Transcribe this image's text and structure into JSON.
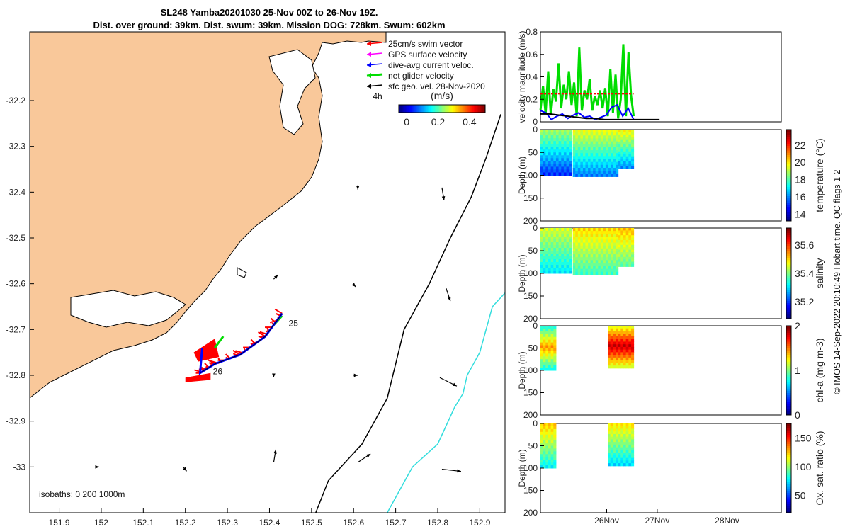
{
  "title": {
    "line1": "SL248 Yamba20201030 25-Nov 00Z to 26-Nov 19Z.",
    "line2": "Dist. over ground: 39km. Dist. swum: 39km. Mission DOG: 728km. Swum: 602km"
  },
  "footer_text": "© IMOS 14-Sep-2022 20:10:49 Hobart time. QC flags 1 2",
  "colors": {
    "land": "#f9c89a",
    "swim": "#ff0000",
    "gps": "#ff00ff",
    "dive_avg": "#0000ff",
    "net": "#00dd00",
    "isobath_200": "#000000",
    "isobath_1000": "#33dddd"
  },
  "chart_data": [
    {
      "type": "map",
      "name": "track-map",
      "x_ticks": [
        "151.9",
        "152",
        "152.1",
        "152.2",
        "152.3",
        "152.4",
        "152.5",
        "152.6",
        "152.7",
        "152.8",
        "152.9"
      ],
      "y_ticks": [
        "-32.2",
        "-32.3",
        "-32.4",
        "-32.5",
        "-32.6",
        "-32.7",
        "-32.8",
        "-32.9",
        "-33"
      ],
      "xlim": [
        151.83,
        152.96
      ],
      "ylim": [
        -33.1,
        -32.05
      ],
      "legend": [
        {
          "label": "25cm/s swim vector",
          "color": "#ff0000"
        },
        {
          "label": "GPS surface velocity",
          "color": "#ff00ff"
        },
        {
          "label": "dive-avg current veloc.",
          "color": "#0000ff"
        },
        {
          "label": "net glider velocity",
          "color": "#00dd00"
        },
        {
          "label": "sfc geo. vel. 28-Nov-2020",
          "color": "#000000"
        }
      ],
      "legend_position": "top-right",
      "colorbar": {
        "label": "(m/s)",
        "ticks": [
          "0",
          "0.2",
          "0.4"
        ],
        "range": [
          -0.05,
          0.5
        ]
      },
      "interval_label": "4h",
      "day_labels": [
        {
          "text": "25",
          "lon": 152.44,
          "lat": -32.685
        },
        {
          "text": "26",
          "lon": 152.26,
          "lat": -32.79
        }
      ],
      "isobaths_label": "isobaths: 0   200  1000m",
      "glider_track": [
        [
          152.43,
          -32.665
        ],
        [
          152.39,
          -32.715
        ],
        [
          152.33,
          -32.755
        ],
        [
          152.27,
          -32.775
        ],
        [
          152.235,
          -32.795
        ]
      ],
      "geo_vectors": [
        {
          "lon": 152.61,
          "lat": -32.385,
          "u": 0.0,
          "v": -0.1
        },
        {
          "lon": 152.81,
          "lat": -32.39,
          "u": 0.05,
          "v": -0.3
        },
        {
          "lon": 152.41,
          "lat": -32.59,
          "u": 0.1,
          "v": 0.1
        },
        {
          "lon": 152.6,
          "lat": -32.602,
          "u": 0.05,
          "v": -0.05
        },
        {
          "lon": 152.82,
          "lat": -32.61,
          "u": 0.1,
          "v": -0.3
        },
        {
          "lon": 152.41,
          "lat": -32.8,
          "u": 0.0,
          "v": -0.05
        },
        {
          "lon": 152.6,
          "lat": -32.8,
          "u": 0.1,
          "v": 0.0
        },
        {
          "lon": 152.805,
          "lat": -32.805,
          "u": 0.4,
          "v": -0.2
        },
        {
          "lon": 151.99,
          "lat": -33.0,
          "u": 0.05,
          "v": 0.0
        },
        {
          "lon": 152.195,
          "lat": -33.0,
          "u": 0.08,
          "v": -0.1
        },
        {
          "lon": 152.41,
          "lat": -32.99,
          "u": 0.05,
          "v": 0.3
        },
        {
          "lon": 152.61,
          "lat": -32.99,
          "u": 0.3,
          "v": 0.2
        },
        {
          "lon": 152.81,
          "lat": -33.005,
          "u": 0.45,
          "v": -0.05
        }
      ]
    },
    {
      "type": "line",
      "name": "velocity-magnitude",
      "ylabel": "velocity magnitude (m/s)",
      "ylim": [
        0,
        0.8
      ],
      "y_ticks": [
        "0",
        "0.2",
        "0.4",
        "0.6",
        "0.8"
      ],
      "series": [
        {
          "color": "#00dd00",
          "values": [
            0.1,
            0.32,
            0.07,
            0.45,
            0.06,
            0.29,
            0.18,
            0.52,
            0.12,
            0.33,
            0.2,
            0.45,
            0.15,
            0.35,
            0.05,
            0.66,
            0.1,
            0.28,
            0.2,
            0.38,
            0.1,
            0.23,
            0.15,
            0.28,
            0.12,
            0.3,
            0.05,
            0.47,
            0.08,
            0.42,
            0.03,
            0.2,
            0.69,
            0.05,
            0.62,
            0.23,
            0.05
          ]
        },
        {
          "color": "#ff0000",
          "values": [
            0.25,
            0.25,
            0.25,
            0.25,
            0.25,
            0.25,
            0.25,
            0.25,
            0.25,
            0.25,
            0.25,
            0.25,
            0.25,
            0.25,
            0.25,
            0.25,
            0.25,
            0.25,
            0.25
          ]
        },
        {
          "color": "#0000ff",
          "values": [
            0.1,
            0.08,
            0.02,
            0.05,
            0.07,
            0.03,
            0.06,
            0.08,
            0.04,
            0.05,
            0.02,
            0.04,
            0.06,
            0.13,
            0.15,
            0.05,
            0.12,
            0.02
          ]
        },
        {
          "color": "#000000",
          "values": [
            0.07,
            0.07,
            0.06,
            0.05,
            0.04,
            0.03,
            0.03,
            0.02,
            0.02,
            0.02,
            0.02,
            0.02,
            0.02,
            0.02
          ]
        }
      ]
    },
    {
      "type": "heatmap",
      "name": "temperature-panel",
      "ylabel": "Depth (m)",
      "ylim": [
        200,
        0
      ],
      "y_ticks": [
        "0",
        "50",
        "100",
        "150",
        "200"
      ],
      "colorbar": {
        "label": "temperature (°C)",
        "ticks": [
          "14",
          "16",
          "18",
          "20",
          "22"
        ],
        "range": [
          13.2,
          23.8
        ]
      },
      "profiles": [
        [
          0.0,
          1.2,
          100,
          18.8
        ],
        [
          1.25,
          3.0,
          103,
          19.6
        ],
        [
          3.0,
          3.6,
          85,
          19.8
        ]
      ]
    },
    {
      "type": "heatmap",
      "name": "salinity-panel",
      "ylabel": "Depth (m)",
      "ylim": [
        200,
        0
      ],
      "y_ticks": [
        "0",
        "50",
        "100",
        "150",
        "200"
      ],
      "colorbar": {
        "label": "salinity",
        "ticks": [
          "35.2",
          "35.4",
          "35.6"
        ],
        "range": [
          35.08,
          35.72
        ]
      },
      "profiles": [
        [
          0.0,
          1.2,
          100,
          35.45
        ],
        [
          1.25,
          3.0,
          103,
          35.5
        ],
        [
          3.0,
          3.6,
          85,
          35.52
        ]
      ]
    },
    {
      "type": "heatmap",
      "name": "chla-panel",
      "ylabel": "Depth (m)",
      "ylim": [
        200,
        0
      ],
      "y_ticks": [
        "0",
        "50",
        "100",
        "150",
        "200"
      ],
      "colorbar": {
        "label": "chl-a (mg m-3)",
        "ticks": [
          "0",
          "1",
          "2"
        ],
        "range": [
          0,
          2
        ]
      },
      "profiles": [
        [
          0.0,
          0.6,
          100,
          0.9
        ],
        [
          2.6,
          3.6,
          95,
          1.3
        ]
      ]
    },
    {
      "type": "heatmap",
      "name": "oxygen-panel",
      "ylabel": "Depth (m)",
      "ylim": [
        200,
        0
      ],
      "y_ticks": [
        "0",
        "50",
        "100",
        "150",
        "200"
      ],
      "colorbar": {
        "label": "Ox. sat. ratio (%)",
        "ticks": [
          "50",
          "100",
          "150"
        ],
        "range": [
          20,
          175
        ]
      },
      "x_ticks": [
        "26Nov",
        "27Nov",
        "28Nov"
      ],
      "profiles": [
        [
          0.0,
          0.6,
          100,
          125
        ],
        [
          2.6,
          3.6,
          95,
          120
        ]
      ]
    }
  ]
}
